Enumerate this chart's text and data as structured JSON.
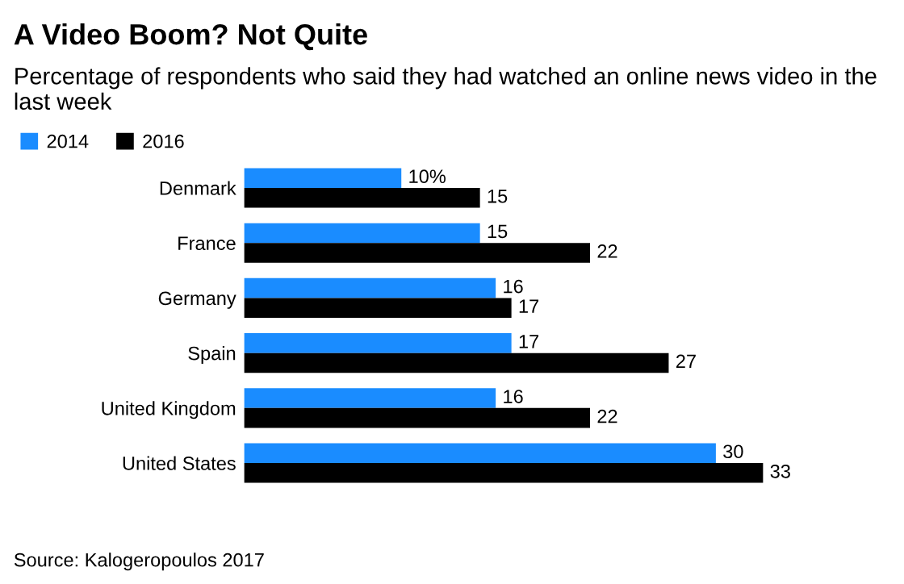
{
  "chart_data": {
    "type": "bar",
    "orientation": "horizontal",
    "title": "A Video Boom? Not Quite",
    "subtitle": "Percentage of respondents who said they had watched an online news video in the last week",
    "categories": [
      "Denmark",
      "France",
      "Germany",
      "Spain",
      "United Kingdom",
      "United States"
    ],
    "series": [
      {
        "name": "2014",
        "color": "#1a8cff",
        "values": [
          10,
          15,
          16,
          17,
          16,
          30
        ],
        "value_labels": [
          "10%",
          "15",
          "16",
          "17",
          "16",
          "30"
        ]
      },
      {
        "name": "2016",
        "color": "#000000",
        "values": [
          15,
          22,
          17,
          27,
          22,
          33
        ],
        "value_labels": [
          "15",
          "22",
          "17",
          "27",
          "22",
          "33"
        ]
      }
    ],
    "legend": "top left",
    "grid": false,
    "annotations": [
      "Source: Kalogeropoulos 2017"
    ]
  }
}
